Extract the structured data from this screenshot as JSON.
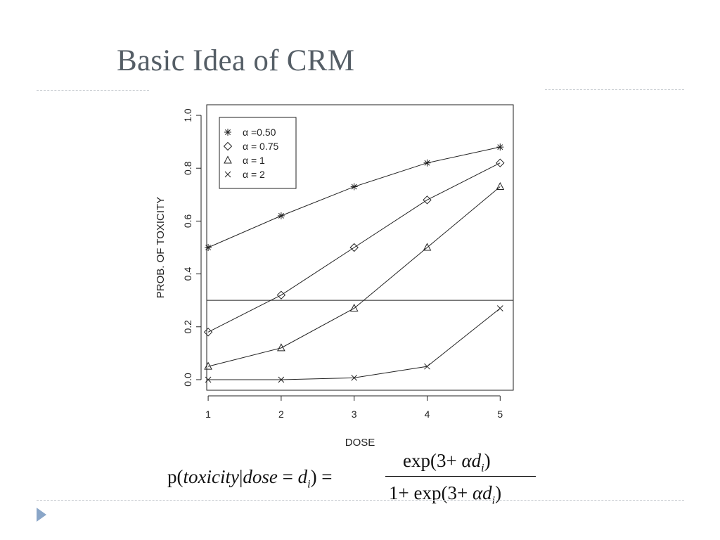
{
  "slide": {
    "title": "Basic Idea of CRM",
    "formula": {
      "lhs": "p(toxicity|dose = d_i) =",
      "numerator": "exp(3+ αd_i)",
      "denominator": "1+ exp(3+ αd_i)"
    }
  },
  "colors": {
    "title": "#555e66",
    "rule": "#c9cdd2",
    "bullet": "#8aa6c8",
    "ink": "#222222"
  },
  "chart_data": {
    "type": "line",
    "xlabel": "DOSE",
    "ylabel": "PROB. OF TOXICITY",
    "x": [
      1,
      2,
      3,
      4,
      5
    ],
    "xticks": [
      "1",
      "2",
      "3",
      "4",
      "5"
    ],
    "yticks": [
      "0.0",
      "0.2",
      "0.4",
      "0.6",
      "0.8",
      "1.0"
    ],
    "xlim": [
      0.98,
      5.18
    ],
    "ylim": [
      -0.04,
      1.04
    ],
    "reference_line": 0.3,
    "grid": false,
    "legend_position": "top-left",
    "series": [
      {
        "name": "α =0.50",
        "marker": "asterisk",
        "values": [
          0.5,
          0.62,
          0.73,
          0.82,
          0.88
        ]
      },
      {
        "name": "α = 0.75",
        "marker": "diamond",
        "values": [
          0.18,
          0.32,
          0.5,
          0.68,
          0.82
        ]
      },
      {
        "name": "α = 1",
        "marker": "triangle",
        "values": [
          0.05,
          0.12,
          0.27,
          0.5,
          0.73
        ]
      },
      {
        "name": "α = 2",
        "marker": "cross",
        "values": [
          0.0,
          0.0,
          0.007,
          0.05,
          0.27
        ]
      }
    ]
  }
}
